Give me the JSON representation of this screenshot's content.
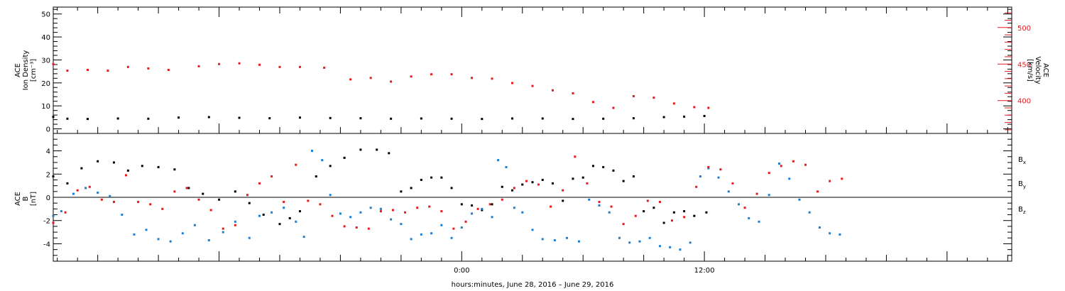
{
  "colors": {
    "black": "#000000",
    "red": "#e8191d",
    "blue": "#1a7fd4"
  },
  "chart_data": [
    {
      "type": "scatter",
      "panel": "top",
      "left_axis": {
        "label_lines": [
          "ACE",
          "Ion Density",
          "[cm⁻³]"
        ],
        "ylim": [
          -2,
          53
        ],
        "ticks": [
          0,
          10,
          20,
          30,
          40,
          50
        ],
        "tick_labels": [
          "0",
          "10",
          "20",
          "30",
          "40",
          "50"
        ]
      },
      "right_axis": {
        "label_lines": [
          "ACE",
          "Velocity",
          "[km/s]"
        ],
        "ylim": [
          355,
          528
        ],
        "ticks": [
          400,
          450,
          500
        ],
        "tick_labels": [
          "400",
          "450",
          "500"
        ],
        "color": "#e8191d"
      },
      "series": [
        {
          "axis": "left",
          "color": "#000000",
          "points": [
            [
              -20.2,
              5.2
            ],
            [
              -19.5,
              4.4
            ],
            [
              -18.5,
              4.3
            ],
            [
              -17,
              4.5
            ],
            [
              -15.5,
              4.4
            ],
            [
              -14,
              4.9
            ],
            [
              -12.5,
              5.1
            ],
            [
              -11,
              4.8
            ],
            [
              -9.5,
              4.6
            ],
            [
              -8,
              4.9
            ],
            [
              -6.5,
              4.7
            ],
            [
              -5,
              4.6
            ],
            [
              -3.5,
              4.4
            ],
            [
              -2,
              4.5
            ],
            [
              -0.5,
              4.4
            ],
            [
              1,
              4.3
            ],
            [
              2.5,
              4.5
            ],
            [
              4,
              4.5
            ],
            [
              5.5,
              4.3
            ],
            [
              7,
              4.4
            ],
            [
              8.5,
              4.6
            ],
            [
              10,
              5.1
            ],
            [
              11,
              5.3
            ],
            [
              12,
              5.6
            ]
          ]
        },
        {
          "axis": "right",
          "color": "#e8191d",
          "points": [
            [
              -20.2,
              450
            ],
            [
              -19.5,
              441
            ],
            [
              -18.5,
              442
            ],
            [
              -17.5,
              441
            ],
            [
              -16.5,
              446
            ],
            [
              -15.5,
              444
            ],
            [
              -14.5,
              442
            ],
            [
              -13,
              447
            ],
            [
              -12,
              450
            ],
            [
              -11,
              451
            ],
            [
              -10,
              449
            ],
            [
              -9,
              446
            ],
            [
              -8,
              446
            ],
            [
              -6.8,
              445
            ],
            [
              -5.5,
              429
            ],
            [
              -4.5,
              431
            ],
            [
              -3.5,
              426
            ],
            [
              -2.5,
              433
            ],
            [
              -1.5,
              436
            ],
            [
              -0.5,
              436
            ],
            [
              0.5,
              431
            ],
            [
              1.5,
              430
            ],
            [
              2.5,
              424
            ],
            [
              3.5,
              420
            ],
            [
              4.5,
              414
            ],
            [
              5.5,
              410
            ],
            [
              6.5,
              398
            ],
            [
              7.5,
              390
            ],
            [
              8.5,
              406
            ],
            [
              9.5,
              404
            ],
            [
              10.5,
              396
            ],
            [
              11.5,
              391
            ],
            [
              12.2,
              390
            ]
          ]
        }
      ]
    },
    {
      "type": "scatter",
      "panel": "bottom",
      "left_axis": {
        "label_lines": [
          "ACE",
          "B",
          "[nT]"
        ],
        "ylim": [
          -5.5,
          5.5
        ],
        "ticks": [
          -4,
          -2,
          0,
          2,
          4
        ],
        "tick_labels": [
          "-4",
          "-2",
          "0",
          "2",
          "4"
        ]
      },
      "legend": [
        {
          "text": "B",
          "sub": "x",
          "color": "#000000"
        },
        {
          "text": "B",
          "sub": "y",
          "color": "#1a7fd4"
        },
        {
          "text": "B",
          "sub": "z",
          "color": "#e8191d"
        }
      ],
      "series": [
        {
          "name_ref": "Bx",
          "color": "#000000",
          "points": [
            [
              -20.2,
              1.8
            ],
            [
              -19.5,
              1.2
            ],
            [
              -18.8,
              2.5
            ],
            [
              -18,
              3.1
            ],
            [
              -17.2,
              3
            ],
            [
              -16.5,
              2.3
            ],
            [
              -15.8,
              2.7
            ],
            [
              -15,
              2.6
            ],
            [
              -14.2,
              2.4
            ],
            [
              -13.5,
              0.8
            ],
            [
              -12.8,
              0.3
            ],
            [
              -12,
              -0.2
            ],
            [
              -11.2,
              0.5
            ],
            [
              -10.5,
              -0.5
            ],
            [
              -9.8,
              -1.5
            ],
            [
              -9,
              -2.3
            ],
            [
              -8.5,
              -1.8
            ],
            [
              -8,
              -1.2
            ],
            [
              -7.2,
              1.8
            ],
            [
              -6.5,
              2.7
            ],
            [
              -5.8,
              3.4
            ],
            [
              -5,
              4.1
            ],
            [
              -4.2,
              4.1
            ],
            [
              -3.6,
              3.8
            ],
            [
              -3,
              0.5
            ],
            [
              -2.5,
              0.8
            ],
            [
              -2,
              1.5
            ],
            [
              -1.5,
              1.7
            ],
            [
              -1,
              1.7
            ],
            [
              -0.5,
              0.8
            ],
            [
              0,
              -0.6
            ],
            [
              0.5,
              -0.7
            ],
            [
              1,
              -1.1
            ],
            [
              1.5,
              -0.6
            ],
            [
              2,
              0.9
            ],
            [
              2.5,
              0.6
            ],
            [
              3,
              1.1
            ],
            [
              3.5,
              1.3
            ],
            [
              4,
              1.5
            ],
            [
              4.5,
              1.2
            ],
            [
              5,
              -0.3
            ],
            [
              5.5,
              1.6
            ],
            [
              6,
              1.7
            ],
            [
              6.5,
              2.7
            ],
            [
              7,
              2.6
            ],
            [
              7.5,
              2.3
            ],
            [
              8,
              1.4
            ],
            [
              8.5,
              1.8
            ],
            [
              9,
              -1.2
            ],
            [
              9.5,
              -0.9
            ],
            [
              10,
              -2.2
            ],
            [
              10.5,
              -1.3
            ],
            [
              11,
              -1.2
            ],
            [
              11.5,
              -1.6
            ],
            [
              12.1,
              -1.3
            ]
          ]
        },
        {
          "name_ref": "By",
          "color": "#1a7fd4",
          "points": [
            [
              -20.2,
              -1.6
            ],
            [
              -19.8,
              -1.2
            ],
            [
              -19.2,
              0.3
            ],
            [
              -18.6,
              0.8
            ],
            [
              -18,
              0.4
            ],
            [
              -17.4,
              0.1
            ],
            [
              -16.8,
              -1.5
            ],
            [
              -16.2,
              -3.2
            ],
            [
              -15.6,
              -2.8
            ],
            [
              -15,
              -3.6
            ],
            [
              -14.4,
              -3.8
            ],
            [
              -13.8,
              -3.1
            ],
            [
              -13.2,
              -2.4
            ],
            [
              -12.5,
              -3.7
            ],
            [
              -11.8,
              -3
            ],
            [
              -11.2,
              -2.1
            ],
            [
              -10.5,
              -3.5
            ],
            [
              -10,
              -1.6
            ],
            [
              -9.4,
              -1.3
            ],
            [
              -8.8,
              -0.9
            ],
            [
              -8.2,
              -2.1
            ],
            [
              -7.8,
              -3.4
            ],
            [
              -7.4,
              4
            ],
            [
              -6.9,
              3.2
            ],
            [
              -6.5,
              0.2
            ],
            [
              -6,
              -1.4
            ],
            [
              -5.5,
              -1.7
            ],
            [
              -5,
              -1.3
            ],
            [
              -4.5,
              -0.9
            ],
            [
              -4,
              -1
            ],
            [
              -3.5,
              -1.9
            ],
            [
              -3,
              -2.3
            ],
            [
              -2.5,
              -3.6
            ],
            [
              -2,
              -3.2
            ],
            [
              -1.5,
              -3.1
            ],
            [
              -1,
              -2.4
            ],
            [
              -0.5,
              -3.5
            ],
            [
              0,
              -2.6
            ],
            [
              0.5,
              -1.4
            ],
            [
              1,
              -1
            ],
            [
              1.5,
              -1.7
            ],
            [
              1.8,
              3.2
            ],
            [
              2.2,
              2.6
            ],
            [
              2.6,
              -0.9
            ],
            [
              3,
              -1.3
            ],
            [
              3.5,
              -2.8
            ],
            [
              4,
              -3.6
            ],
            [
              4.6,
              -3.7
            ],
            [
              5.2,
              -3.5
            ],
            [
              5.8,
              -3.8
            ],
            [
              6.3,
              -0.2
            ],
            [
              6.8,
              -0.7
            ],
            [
              7.3,
              -1.3
            ],
            [
              7.8,
              -3.5
            ],
            [
              8.3,
              -3.9
            ],
            [
              8.8,
              -3.8
            ],
            [
              9.3,
              -3.5
            ],
            [
              9.8,
              -4.2
            ],
            [
              10.3,
              -4.3
            ],
            [
              10.8,
              -4.5
            ],
            [
              11.3,
              -3.9
            ],
            [
              11.8,
              1.8
            ],
            [
              12.2,
              2.5
            ],
            [
              12.7,
              1.7
            ],
            [
              13.2,
              0.5
            ],
            [
              13.7,
              -0.6
            ],
            [
              14.2,
              -1.8
            ],
            [
              14.7,
              -2.1
            ],
            [
              15.2,
              0.2
            ],
            [
              15.7,
              2.9
            ],
            [
              16.2,
              1.6
            ],
            [
              16.7,
              -0.2
            ],
            [
              17.2,
              -1.3
            ],
            [
              17.7,
              -2.6
            ],
            [
              18.2,
              -3.1
            ],
            [
              18.7,
              -3.2
            ]
          ]
        },
        {
          "name_ref": "Bz",
          "color": "#e8191d",
          "points": [
            [
              -20.2,
              -2.2
            ],
            [
              -19.6,
              -1.3
            ],
            [
              -19,
              0.6
            ],
            [
              -18.4,
              0.9
            ],
            [
              -17.8,
              -0.2
            ],
            [
              -17.2,
              -0.4
            ],
            [
              -16.6,
              1.9
            ],
            [
              -16,
              -0.4
            ],
            [
              -15.4,
              -0.6
            ],
            [
              -14.8,
              -1
            ],
            [
              -14.2,
              0.5
            ],
            [
              -13.6,
              0.8
            ],
            [
              -13,
              -0.2
            ],
            [
              -12.4,
              -1.1
            ],
            [
              -11.8,
              -2.7
            ],
            [
              -11.2,
              -2.4
            ],
            [
              -10.6,
              0.2
            ],
            [
              -10,
              1.2
            ],
            [
              -9.4,
              1.8
            ],
            [
              -8.8,
              -0.4
            ],
            [
              -8.2,
              2.8
            ],
            [
              -7.6,
              -0.3
            ],
            [
              -7,
              -0.6
            ],
            [
              -6.4,
              -1.6
            ],
            [
              -5.8,
              -2.5
            ],
            [
              -5.2,
              -2.6
            ],
            [
              -4.6,
              -2.7
            ],
            [
              -4,
              -1.2
            ],
            [
              -3.4,
              -1.1
            ],
            [
              -2.8,
              -1.3
            ],
            [
              -2.2,
              -0.9
            ],
            [
              -1.6,
              -0.8
            ],
            [
              -1,
              -1.2
            ],
            [
              -0.4,
              -2.7
            ],
            [
              0.2,
              -2.1
            ],
            [
              0.8,
              -1
            ],
            [
              1.4,
              -0.6
            ],
            [
              2,
              -0.2
            ],
            [
              2.6,
              0.8
            ],
            [
              3.2,
              1.4
            ],
            [
              3.8,
              1.1
            ],
            [
              4.4,
              -0.8
            ],
            [
              5,
              0.6
            ],
            [
              5.6,
              3.5
            ],
            [
              6.2,
              1.2
            ],
            [
              6.8,
              -0.4
            ],
            [
              7.4,
              -0.8
            ],
            [
              8,
              -2.3
            ],
            [
              8.6,
              -1.6
            ],
            [
              9.2,
              -0.3
            ],
            [
              9.8,
              -0.4
            ],
            [
              10.4,
              -2
            ],
            [
              11,
              -1.7
            ],
            [
              11.6,
              0.9
            ],
            [
              12.2,
              2.6
            ],
            [
              12.8,
              2.4
            ],
            [
              13.4,
              1.2
            ],
            [
              14,
              -0.9
            ],
            [
              14.6,
              0.3
            ],
            [
              15.2,
              2.1
            ],
            [
              15.8,
              2.7
            ],
            [
              16.4,
              3.1
            ],
            [
              17,
              2.8
            ],
            [
              17.6,
              0.5
            ],
            [
              18.2,
              1.4
            ],
            [
              18.8,
              1.6
            ]
          ]
        }
      ]
    }
  ],
  "x_axis": {
    "label": "hours:minutes, June 28, 2016 – June 29, 2016",
    "xlim": [
      -20.2,
      27.2
    ],
    "major_ticks": [
      0,
      12
    ],
    "tick_labels": [
      "0:00",
      "12:00"
    ]
  }
}
